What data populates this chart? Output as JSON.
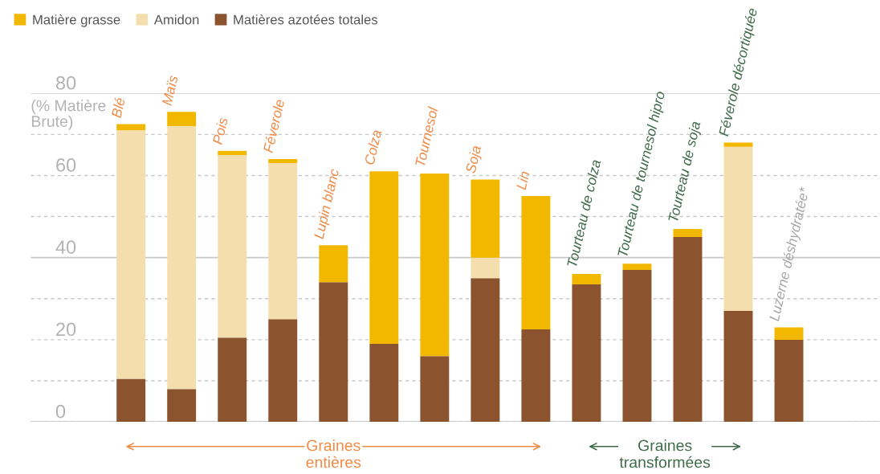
{
  "chart_data": {
    "type": "bar",
    "stacked": true,
    "categories": [
      "Blé",
      "Maïs",
      "Pois",
      "Féverole",
      "Lupin blanc",
      "Colza",
      "Tournesol",
      "Soja",
      "Lin",
      "Tourteau de colza",
      "Tourteau de tournesol hipro",
      "Tourteau de soja",
      "Féverole décortiquée",
      "Luzerne déshydratée*"
    ],
    "series": [
      {
        "name": "Matières azotées totales",
        "color": "#8b532e",
        "values": [
          10.5,
          8,
          20.5,
          25,
          34,
          19,
          16,
          35,
          22.5,
          33.5,
          37,
          45,
          27,
          20
        ]
      },
      {
        "name": "Amidon",
        "color": "#f4deae",
        "values": [
          60.5,
          64,
          44.5,
          38,
          0,
          0,
          0,
          5,
          0,
          0,
          0,
          0,
          40,
          0
        ]
      },
      {
        "name": "Matière grasse",
        "color": "#f2b800",
        "values": [
          1.5,
          3.5,
          1,
          1,
          9,
          42,
          44.5,
          19,
          32.5,
          2.5,
          1.5,
          2,
          1,
          3
        ]
      }
    ],
    "ylabel": "(% Matière Brute)",
    "ylim": [
      0,
      80
    ],
    "yticks": [
      0,
      {
        "value": 10,
        "label": null
      },
      20,
      {
        "value": 30,
        "label": null
      },
      40,
      {
        "value": 50,
        "label": null
      },
      60,
      {
        "value": 70,
        "label": null
      },
      80
    ],
    "grid": "y",
    "ref_lines": [
      {
        "axis": "y",
        "value": 40,
        "color": "#c8c8c8",
        "line_style": "solid"
      }
    ],
    "legend": "top left",
    "annotations": [
      "Graines\nentières",
      "Graines\ntransformées"
    ]
  }
}
